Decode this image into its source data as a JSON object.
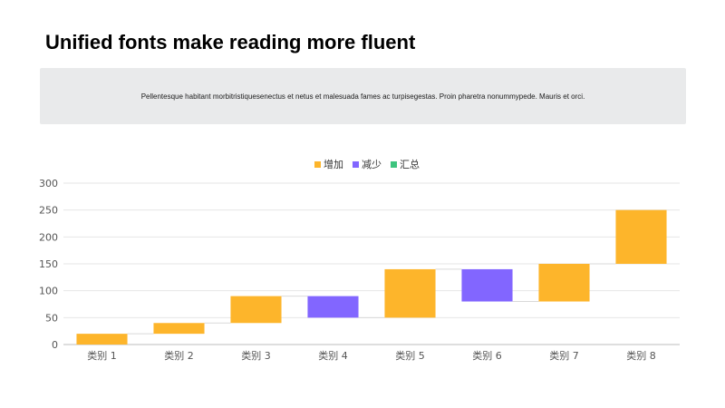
{
  "page": {
    "title": "Unified fonts make reading more fluent",
    "callout_text": "Pellentesque  habitant  morbitristiquesenectus  et netus  et malesuada  fames  ac turpisegestas.  Proin pharetra  nonummypede.   Mauris  et orci."
  },
  "chart_data": {
    "type": "bar",
    "subtype": "waterfall",
    "title": "",
    "xlabel": "",
    "ylabel": "",
    "categories": [
      "类别 1",
      "类别 2",
      "类别 3",
      "类别 4",
      "类别 5",
      "类别 6",
      "类别 7",
      "类别 8"
    ],
    "series": [
      {
        "name": "增加",
        "color": "#fdb52b",
        "values": [
          20,
          20,
          50,
          0,
          90,
          0,
          70,
          100
        ]
      },
      {
        "name": "减少",
        "color": "#8266ff",
        "values": [
          0,
          0,
          0,
          40,
          0,
          60,
          0,
          0
        ]
      },
      {
        "name": "汇总",
        "color": "#3dc47e",
        "values": [
          0,
          0,
          0,
          0,
          0,
          0,
          0,
          0
        ]
      }
    ],
    "bars": [
      {
        "category": "类别 1",
        "kind": "增加",
        "low": 0,
        "high": 20
      },
      {
        "category": "类别 2",
        "kind": "增加",
        "low": 20,
        "high": 40
      },
      {
        "category": "类别 3",
        "kind": "增加",
        "low": 40,
        "high": 90
      },
      {
        "category": "类别 4",
        "kind": "减少",
        "low": 50,
        "high": 90
      },
      {
        "category": "类别 5",
        "kind": "增加",
        "low": 50,
        "high": 140
      },
      {
        "category": "类别 6",
        "kind": "减少",
        "low": 80,
        "high": 140
      },
      {
        "category": "类别 7",
        "kind": "增加",
        "low": 80,
        "high": 150
      },
      {
        "category": "类别 8",
        "kind": "增加",
        "low": 150,
        "high": 250
      }
    ],
    "ylim": [
      0,
      300
    ],
    "yticks": [
      0,
      50,
      100,
      150,
      200,
      250,
      300
    ],
    "grid": true,
    "legend_position": "top-center"
  }
}
